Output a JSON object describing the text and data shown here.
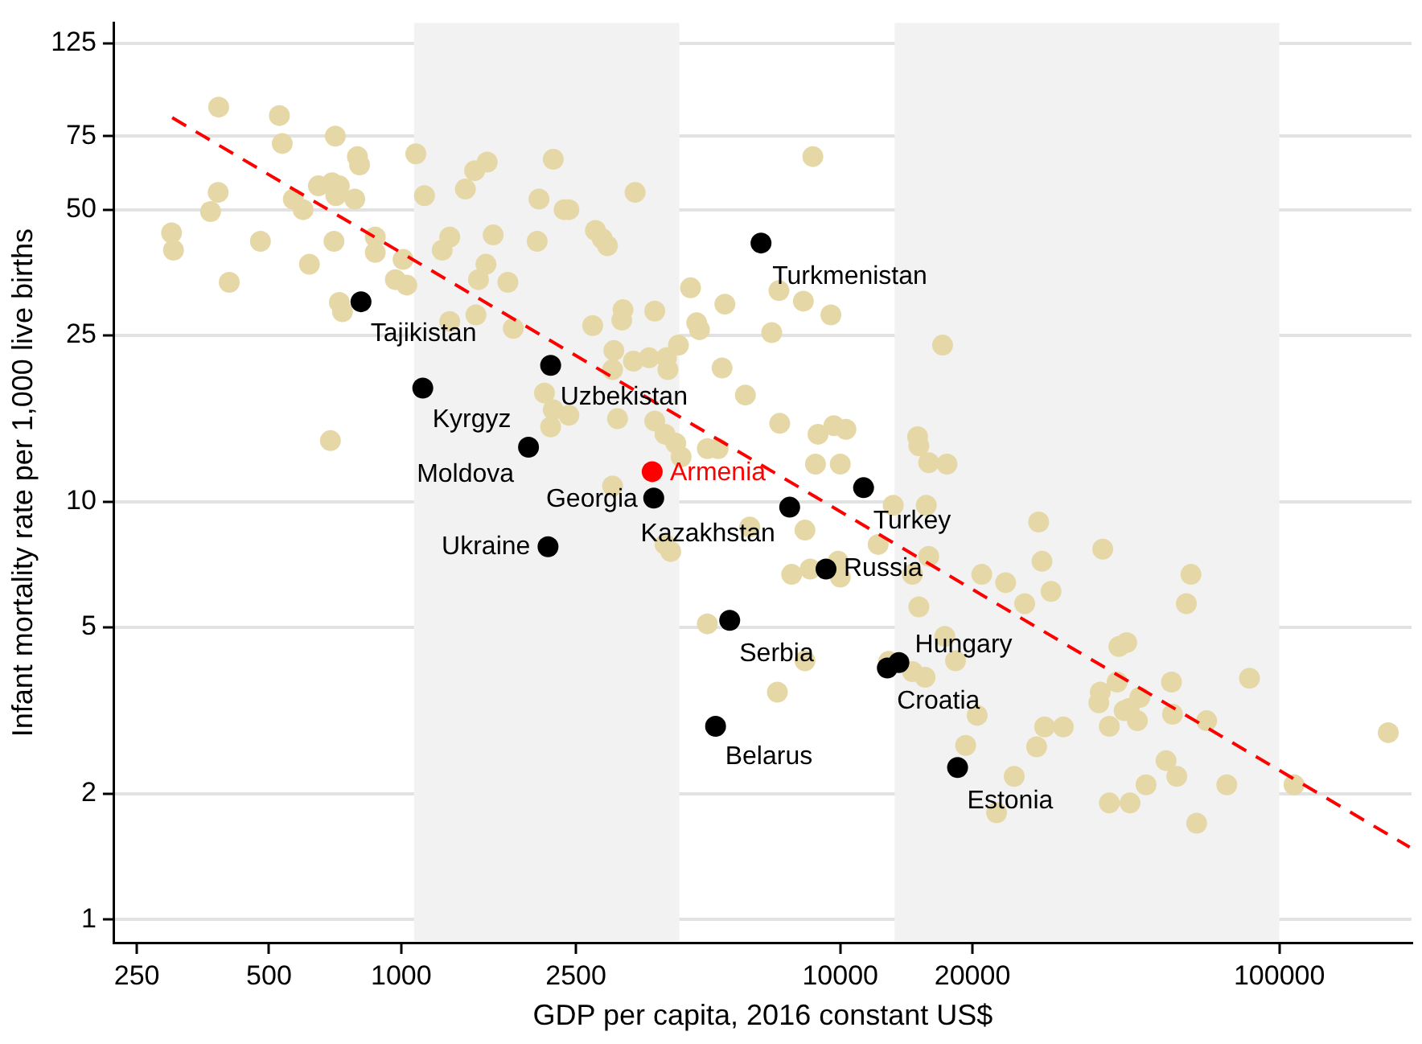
{
  "chart_data": {
    "type": "scatter",
    "xlabel": "GDP per capita, 2016 constant US$",
    "ylabel": "Infant mortality rate per 1,000 live births",
    "log": "xy",
    "grid": "y",
    "marker": "circle",
    "xlim": [
      222,
      200000
    ],
    "ylim": [
      0.88,
      140
    ],
    "xticks": [
      250,
      500,
      1000,
      2500,
      10000,
      20000,
      100000
    ],
    "yticks": [
      1,
      2,
      5,
      10,
      25,
      50,
      75,
      125
    ],
    "bands": [
      {
        "axis": "x",
        "from": 1070,
        "to": 4300,
        "color": "#f2f2f2"
      },
      {
        "axis": "x",
        "from": 13300,
        "to": 100000,
        "color": "#f2f2f2"
      }
    ],
    "series": [
      {
        "color": "#e6d8a6",
        "x": [
          384,
          528,
          708,
          536,
          795,
          804,
          1080,
          383,
          368,
          568,
          598,
          648,
          696,
          723,
          710,
          784,
          300,
          303,
          478,
          703,
          873,
          873,
          618,
          406,
          1010,
          970,
          1030,
          723,
          735,
          1130,
          1400,
          1470,
          1570,
          2220,
          2060,
          2350,
          1290,
          1240,
          1620,
          2040,
          1560,
          1500,
          1750,
          1480,
          1800,
          1290,
          2120,
          2220,
          2190,
          690,
          3410,
          2410,
          2770,
          2870,
          2950,
          8660,
          4560,
          5460,
          7250,
          8240,
          9520,
          6980,
          3780,
          3200,
          3180,
          2730,
          4710,
          4780,
          4280,
          3050,
          3030,
          3380,
          3670,
          4020,
          4050,
          5380,
          17100,
          6080,
          3110,
          3780,
          3990,
          4220,
          7280,
          8900,
          9670,
          10300,
          4340,
          4980,
          5270,
          2410,
          15000,
          15100,
          15900,
          17500,
          8780,
          10000,
          3030,
          3990,
          4110,
          8310,
          7750,
          8540,
          9890,
          10000,
          12200,
          13200,
          15700,
          15900,
          14600,
          15100,
          21000,
          4980,
          8310,
          7190,
          17300,
          18300,
          14600,
          15600,
          12900,
          20500,
          19300,
          6220,
          28300,
          39600,
          28800,
          23800,
          30200,
          26300,
          62900,
          61400,
          43100,
          44900,
          42700,
          39100,
          38800,
          44300,
          45500,
          48100,
          47500,
          41000,
          56800,
          57100,
          68300,
          85500,
          29200,
          32200,
          28000,
          55200,
          58400,
          49700,
          75900,
          108000,
          177000,
          24900,
          41000,
          45700,
          64800,
          22700
        ],
        "values": [
          88,
          84,
          75,
          72,
          67,
          64,
          68,
          55,
          49.5,
          53,
          50,
          57,
          58,
          57,
          54,
          53,
          44,
          40,
          42,
          42,
          43,
          39.5,
          37,
          33.5,
          38,
          34,
          33,
          30,
          28.5,
          54,
          56,
          62,
          65,
          66,
          53,
          50,
          43,
          40,
          43.5,
          42,
          37,
          34,
          33.5,
          28,
          26,
          27,
          18.2,
          16.6,
          15.1,
          14,
          55,
          50,
          44.6,
          42.6,
          41,
          67,
          32.5,
          29.7,
          32,
          30.2,
          28,
          25.4,
          28.6,
          28.8,
          27.2,
          26.4,
          26.8,
          25.8,
          23.7,
          23,
          20.7,
          21.7,
          22.1,
          22.1,
          20.7,
          20.9,
          23.7,
          18,
          15.8,
          15.6,
          14.5,
          13.8,
          15.4,
          14.5,
          15.2,
          14.9,
          12.8,
          13.4,
          13.4,
          16.1,
          14.3,
          13.6,
          12.4,
          12.3,
          12.3,
          12.3,
          10.9,
          7.9,
          7.6,
          8.55,
          6.7,
          6.9,
          7.2,
          6.6,
          7.9,
          9.8,
          9.8,
          7.4,
          6.7,
          5.6,
          6.7,
          5.1,
          4.16,
          3.5,
          4.76,
          4.16,
          3.92,
          3.8,
          4.15,
          3.08,
          2.61,
          8.7,
          8.94,
          7.7,
          7.2,
          6.4,
          6.1,
          5.7,
          6.7,
          5.7,
          4.5,
          4.6,
          3.7,
          3.5,
          3.3,
          3.16,
          3.2,
          3.4,
          2.99,
          2.9,
          3.7,
          3.1,
          2.99,
          3.78,
          2.89,
          2.89,
          2.59,
          2.4,
          2.2,
          2.1,
          2.1,
          2.1,
          2.8,
          2.2,
          1.9,
          1.9,
          1.7,
          1.8
        ]
      },
      {
        "type": "line",
        "marker": "none",
        "line_style": "dashed",
        "color": "#ff0000",
        "x": [
          301,
          198000
        ],
        "values": [
          83,
          1.49
        ]
      },
      {
        "color": "#000000",
        "x": [
          810,
          1120,
          1950,
          2190,
          2160,
          3760,
          6600,
          7670,
          11300,
          9280,
          5600,
          5200,
          13600,
          12800,
          18500
        ],
        "values": [
          30.1,
          18.7,
          13.5,
          21.2,
          7.8,
          10.2,
          41.6,
          9.7,
          10.8,
          6.9,
          5.2,
          2.9,
          4.12,
          4.0,
          2.31
        ]
      },
      {
        "color": "#ff0000",
        "x": [
          3730
        ],
        "values": [
          11.8
        ]
      }
    ],
    "annotations": [
      {
        "text": "Tajikistan",
        "x": 810,
        "y": 30.1
      },
      {
        "text": "Kyrgyz",
        "x": 1120,
        "y": 18.7
      },
      {
        "text": "Uzbekistan",
        "x": 2190,
        "y": 21.2
      },
      {
        "text": "Moldova",
        "x": 1950,
        "y": 13.5
      },
      {
        "text": "Georgia",
        "x": 3760,
        "y": 10.2
      },
      {
        "text": "Armenia",
        "x": 3730,
        "y": 11.8
      },
      {
        "text": "Ukraine",
        "x": 2160,
        "y": 7.8
      },
      {
        "text": "Turkmenistan",
        "x": 6600,
        "y": 41.6
      },
      {
        "text": "Kazakhstan",
        "x": 7670,
        "y": 9.7
      },
      {
        "text": "Turkey",
        "x": 11300,
        "y": 10.8
      },
      {
        "text": "Russia",
        "x": 9280,
        "y": 6.9
      },
      {
        "text": "Serbia",
        "x": 5600,
        "y": 5.2
      },
      {
        "text": "Belarus",
        "x": 5200,
        "y": 2.9
      },
      {
        "text": "Hungary",
        "x": 13600,
        "y": 4.12
      },
      {
        "text": "Croatia",
        "x": 12800,
        "y": 4.0
      },
      {
        "text": "Estonia",
        "x": 18500,
        "y": 2.31
      }
    ]
  }
}
